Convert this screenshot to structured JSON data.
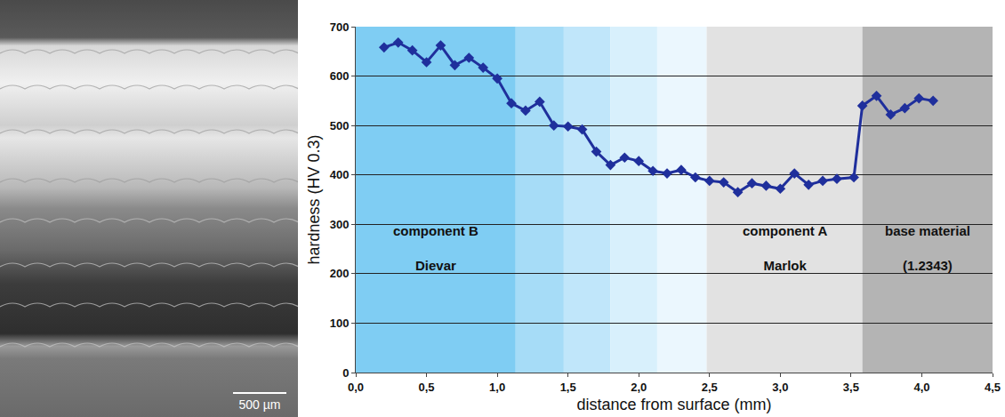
{
  "chart_data": {
    "type": "line",
    "x_label": "distance from surface (mm)",
    "y_label": "hardness (HV 0.3)",
    "x": [
      0.2,
      0.3,
      0.4,
      0.5,
      0.6,
      0.7,
      0.8,
      0.9,
      1.0,
      1.1,
      1.2,
      1.3,
      1.4,
      1.5,
      1.6,
      1.7,
      1.8,
      1.9,
      2.0,
      2.1,
      2.2,
      2.3,
      2.4,
      2.5,
      2.6,
      2.7,
      2.8,
      2.9,
      3.0,
      3.1,
      3.2,
      3.3,
      3.4,
      3.52,
      3.58,
      3.68,
      3.78,
      3.88,
      3.98,
      4.08
    ],
    "values": [
      658,
      668,
      652,
      628,
      662,
      622,
      637,
      617,
      595,
      545,
      530,
      548,
      500,
      498,
      492,
      447,
      420,
      435,
      428,
      408,
      403,
      410,
      395,
      388,
      385,
      365,
      383,
      378,
      372,
      403,
      380,
      388,
      392,
      395,
      540,
      560,
      522,
      535,
      555,
      550
    ],
    "color": "#1f2f9c",
    "marker": "diamond",
    "xlim": [
      0,
      4.5
    ],
    "ylim": [
      0,
      700
    ],
    "xticks": [
      {
        "value": 0,
        "label": "0,0"
      },
      {
        "value": 0.5,
        "label": "0,5"
      },
      {
        "value": 1,
        "label": "1,0"
      },
      {
        "value": 1.5,
        "label": "1,5"
      },
      {
        "value": 2,
        "label": "2,0"
      },
      {
        "value": 2.5,
        "label": "2,5"
      },
      {
        "value": 3,
        "label": "3,0"
      },
      {
        "value": 3.5,
        "label": "3,5"
      },
      {
        "value": 4,
        "label": "4,0"
      },
      {
        "value": 4.5,
        "label": "4,5"
      }
    ],
    "yticks": [
      0,
      100,
      200,
      300,
      400,
      500,
      600,
      700
    ],
    "grid": true,
    "regions": [
      {
        "x0": 0,
        "x1": 1.13,
        "color": "#7fcdf3",
        "label": [
          "component B",
          "Dievar"
        ]
      },
      {
        "x0": 1.13,
        "x1": 1.47,
        "color": "#a6dcf7"
      },
      {
        "x0": 1.47,
        "x1": 1.8,
        "color": "#c0e6fa"
      },
      {
        "x0": 1.8,
        "x1": 2.13,
        "color": "#d8f0fc"
      },
      {
        "x0": 2.13,
        "x1": 2.48,
        "color": "#ebf7fe"
      },
      {
        "x0": 2.48,
        "x1": 3.58,
        "color": "#e2e2e2",
        "label": [
          "component A",
          "Marlok"
        ]
      },
      {
        "x0": 3.58,
        "x1": 4.5,
        "color": "#b4b4b4",
        "label": [
          "base material",
          "(1.2343)"
        ]
      }
    ]
  },
  "micrograph": {
    "scale_bar": "500 µm"
  }
}
